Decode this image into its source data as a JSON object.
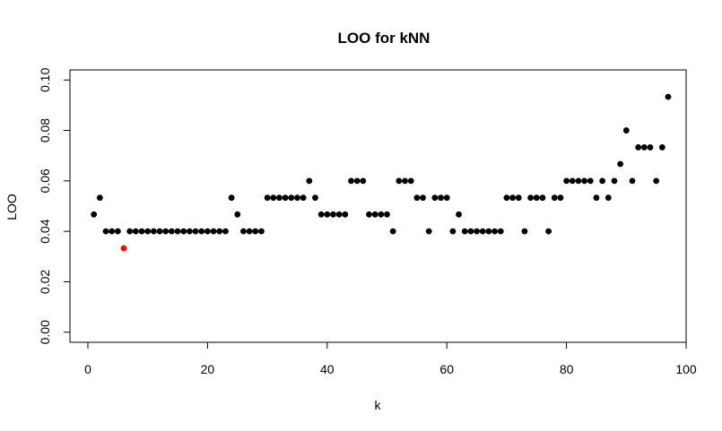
{
  "chart_data": {
    "type": "scatter",
    "title": "LOO for kNN",
    "xlabel": "k",
    "ylabel": "LOO",
    "xlim": [
      -3,
      100
    ],
    "ylim": [
      -0.004,
      0.104
    ],
    "xticks": [
      0,
      20,
      40,
      60,
      80,
      100
    ],
    "yticks": [
      0.0,
      0.02,
      0.04,
      0.06,
      0.08,
      0.1
    ],
    "xtick_labels": [
      "0",
      "20",
      "40",
      "60",
      "80",
      "100"
    ],
    "ytick_labels": [
      "0.00",
      "0.02",
      "0.04",
      "0.06",
      "0.08",
      "0.10"
    ],
    "grid": false,
    "point_color": "#000000",
    "highlight_color": "#ff0000",
    "highlight_index": 5,
    "x": [
      1,
      2,
      3,
      4,
      5,
      6,
      7,
      8,
      9,
      10,
      11,
      12,
      13,
      14,
      15,
      16,
      17,
      18,
      19,
      20,
      21,
      22,
      23,
      24,
      25,
      26,
      27,
      28,
      29,
      30,
      31,
      32,
      33,
      34,
      35,
      36,
      37,
      38,
      39,
      40,
      41,
      42,
      43,
      44,
      45,
      46,
      47,
      48,
      49,
      50,
      51,
      52,
      53,
      54,
      55,
      56,
      57,
      58,
      59,
      60,
      61,
      62,
      63,
      64,
      65,
      66,
      67,
      68,
      69,
      70,
      71,
      72,
      73,
      74,
      75,
      76,
      77,
      78,
      79,
      80,
      81,
      82,
      83,
      84,
      85,
      86,
      87,
      88,
      89,
      90,
      91,
      92,
      93,
      94,
      95,
      96,
      97
    ],
    "y": [
      0.0467,
      0.0533,
      0.04,
      0.04,
      0.04,
      0.0333,
      0.04,
      0.04,
      0.04,
      0.04,
      0.04,
      0.04,
      0.04,
      0.04,
      0.04,
      0.04,
      0.04,
      0.04,
      0.04,
      0.04,
      0.04,
      0.04,
      0.04,
      0.0533,
      0.0467,
      0.04,
      0.04,
      0.04,
      0.04,
      0.0533,
      0.0533,
      0.0533,
      0.0533,
      0.0533,
      0.0533,
      0.0533,
      0.06,
      0.0533,
      0.0467,
      0.0467,
      0.0467,
      0.0467,
      0.0467,
      0.06,
      0.06,
      0.06,
      0.0467,
      0.0467,
      0.0467,
      0.0467,
      0.04,
      0.06,
      0.06,
      0.06,
      0.0533,
      0.0533,
      0.04,
      0.0533,
      0.0533,
      0.0533,
      0.04,
      0.0467,
      0.04,
      0.04,
      0.04,
      0.04,
      0.04,
      0.04,
      0.04,
      0.0533,
      0.0533,
      0.0533,
      0.04,
      0.0533,
      0.0533,
      0.0533,
      0.04,
      0.0533,
      0.0533,
      0.06,
      0.06,
      0.06,
      0.06,
      0.06,
      0.0533,
      0.06,
      0.0533,
      0.06,
      0.0667,
      0.08,
      0.06,
      0.0733,
      0.0733,
      0.0733,
      0.06,
      0.0733,
      0.0933
    ]
  }
}
